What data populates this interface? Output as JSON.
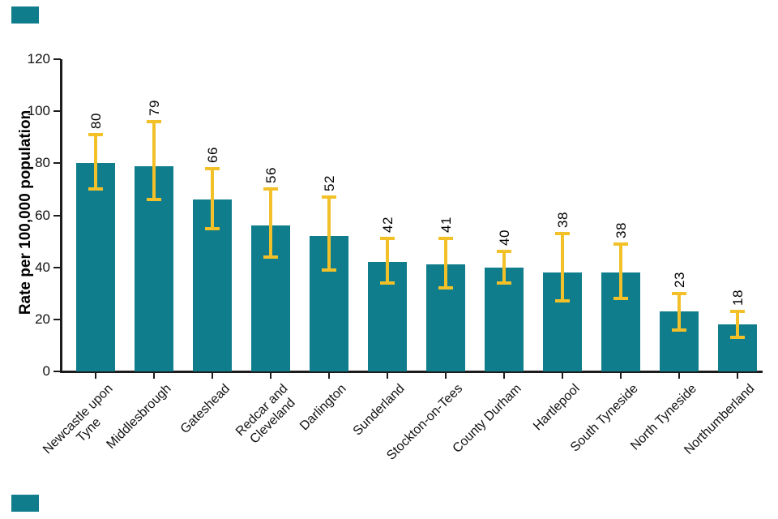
{
  "page": {
    "background": "#ffffff",
    "decor": {
      "mark_color": "#0f7d8c",
      "top_left_mark": "teal-rectangle",
      "bottom_left_mark": "teal-rectangle"
    }
  },
  "chart_data": {
    "type": "bar",
    "title": "",
    "xlabel": "",
    "ylabel": "Rate per 100,000 population",
    "ylim": [
      0,
      120
    ],
    "yticks": [
      0,
      20,
      40,
      60,
      80,
      100,
      120
    ],
    "grid": false,
    "legend": null,
    "bar_color": "#0f7d8c",
    "error_bar_color": "#f2c029",
    "axis_color": "#1c1c1c",
    "categories": [
      "Newcastle upon Tyne",
      "Middlesbrough",
      "Gateshead",
      "Redcar and Cleveland",
      "Darlington",
      "Sunderland",
      "Stockton-on-Tees",
      "County Durham",
      "Hartlepool",
      "South Tyneside",
      "North Tyneside",
      "Northumberland"
    ],
    "category_lines": [
      [
        "Newcastle upon",
        "Tyne"
      ],
      [
        "Middlesbrough"
      ],
      [
        "Gateshead"
      ],
      [
        "Redcar and",
        "Cleveland"
      ],
      [
        "Darlington"
      ],
      [
        "Sunderland"
      ],
      [
        "Stockton-on-Tees"
      ],
      [
        "County Durham"
      ],
      [
        "Hartlepool"
      ],
      [
        "South Tyneside"
      ],
      [
        "North Tyneside"
      ],
      [
        "Northumberland"
      ]
    ],
    "values": [
      80,
      79,
      66,
      56,
      52,
      42,
      41,
      40,
      38,
      38,
      23,
      18
    ],
    "value_labels": [
      "80",
      "79",
      "66",
      "56",
      "52",
      "42",
      "41",
      "40",
      "38",
      "38",
      "23",
      "18"
    ],
    "ci_low": [
      70,
      66,
      55,
      44,
      39,
      34,
      32,
      34,
      27,
      28,
      16,
      13
    ],
    "ci_high": [
      91,
      96,
      78,
      70,
      67,
      51,
      51,
      46,
      53,
      49,
      30,
      23
    ],
    "error_bars": true,
    "value_label_rotation_deg": 90,
    "category_label_rotation_deg": 45
  }
}
